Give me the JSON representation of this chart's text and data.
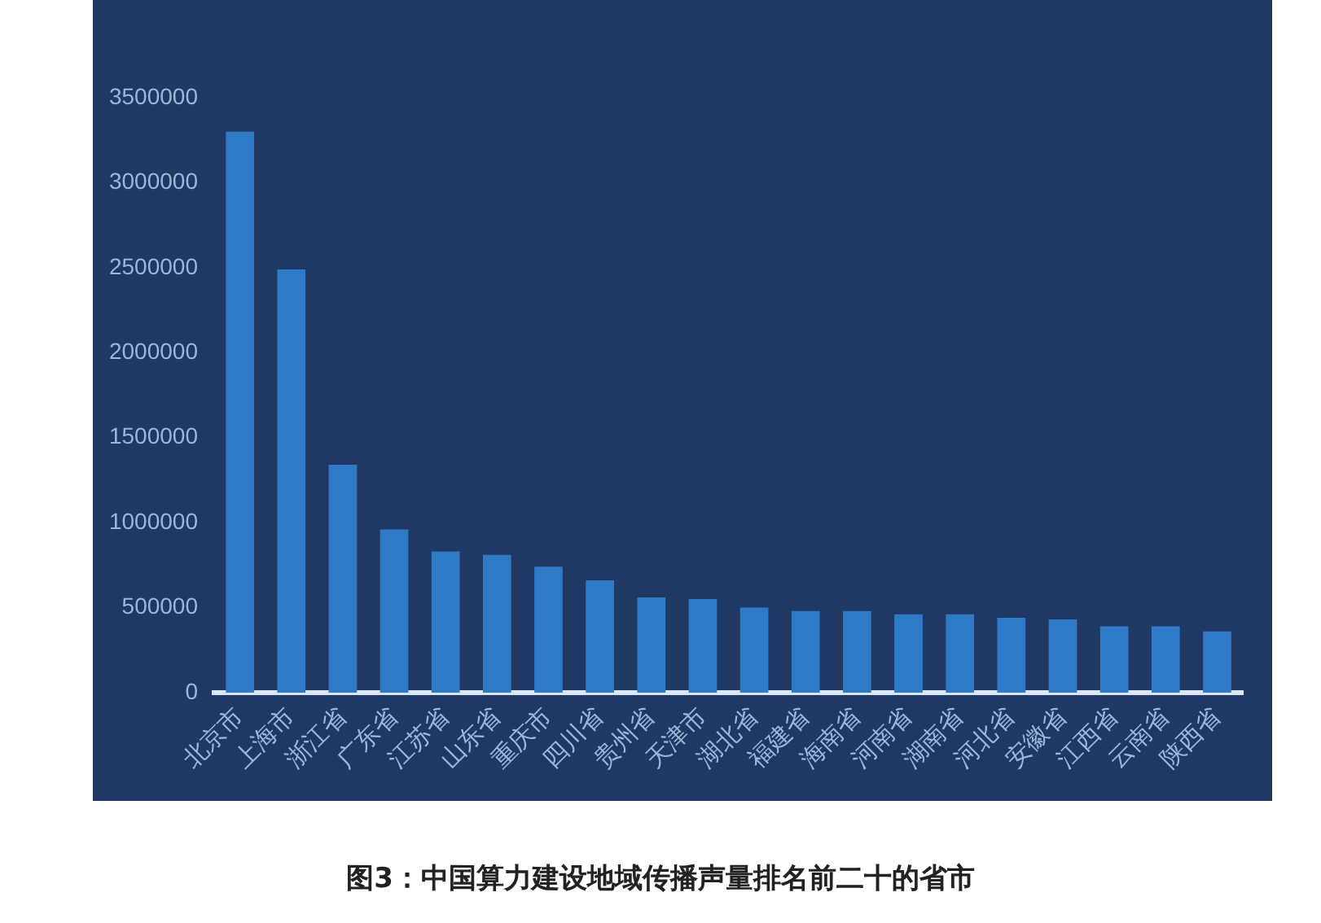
{
  "chart_data": {
    "type": "bar",
    "title": "图3：中国算力建设地域传播声量排名前二十的省市",
    "categories": [
      "北京市",
      "上海市",
      "浙江省",
      "广东省",
      "江苏省",
      "山东省",
      "重庆市",
      "四川省",
      "贵州省",
      "天津市",
      "湖北省",
      "福建省",
      "海南省",
      "河南省",
      "湖南省",
      "河北省",
      "安徽省",
      "江西省",
      "云南省",
      "陕西省"
    ],
    "values": [
      3300000,
      2490000,
      1340000,
      960000,
      830000,
      810000,
      740000,
      660000,
      560000,
      550000,
      500000,
      480000,
      480000,
      460000,
      460000,
      440000,
      430000,
      390000,
      390000,
      360000
    ],
    "color": "#2f7ac6",
    "ylim": [
      0,
      3500000
    ],
    "yticks": [
      0,
      500000,
      1000000,
      1500000,
      2000000,
      2500000,
      3000000,
      3500000
    ],
    "grid": false
  }
}
